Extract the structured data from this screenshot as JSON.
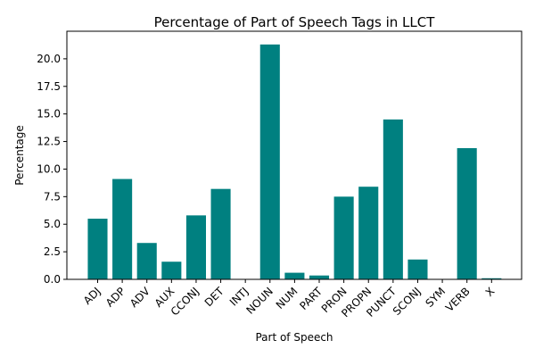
{
  "chart_data": {
    "type": "bar",
    "title": "Percentage of Part of Speech Tags in LLCT",
    "xlabel": "Part of Speech",
    "ylabel": "Percentage",
    "categories": [
      "ADJ",
      "ADP",
      "ADV",
      "AUX",
      "CCONJ",
      "DET",
      "INTJ",
      "NOUN",
      "NUM",
      "PART",
      "PRON",
      "PROPN",
      "PUNCT",
      "SCONJ",
      "SYM",
      "VERB",
      "X"
    ],
    "values": [
      5.5,
      9.1,
      3.3,
      1.6,
      5.8,
      8.2,
      0.0,
      21.3,
      0.6,
      0.35,
      7.5,
      8.4,
      14.5,
      1.8,
      0.0,
      11.9,
      0.1
    ],
    "ylim": [
      0,
      22.5
    ],
    "yticks": [
      "0.0",
      "2.5",
      "5.0",
      "7.5",
      "10.0",
      "12.5",
      "15.0",
      "17.5",
      "20.0"
    ],
    "bar_color": "#008080",
    "grid": false,
    "legend": "none"
  }
}
